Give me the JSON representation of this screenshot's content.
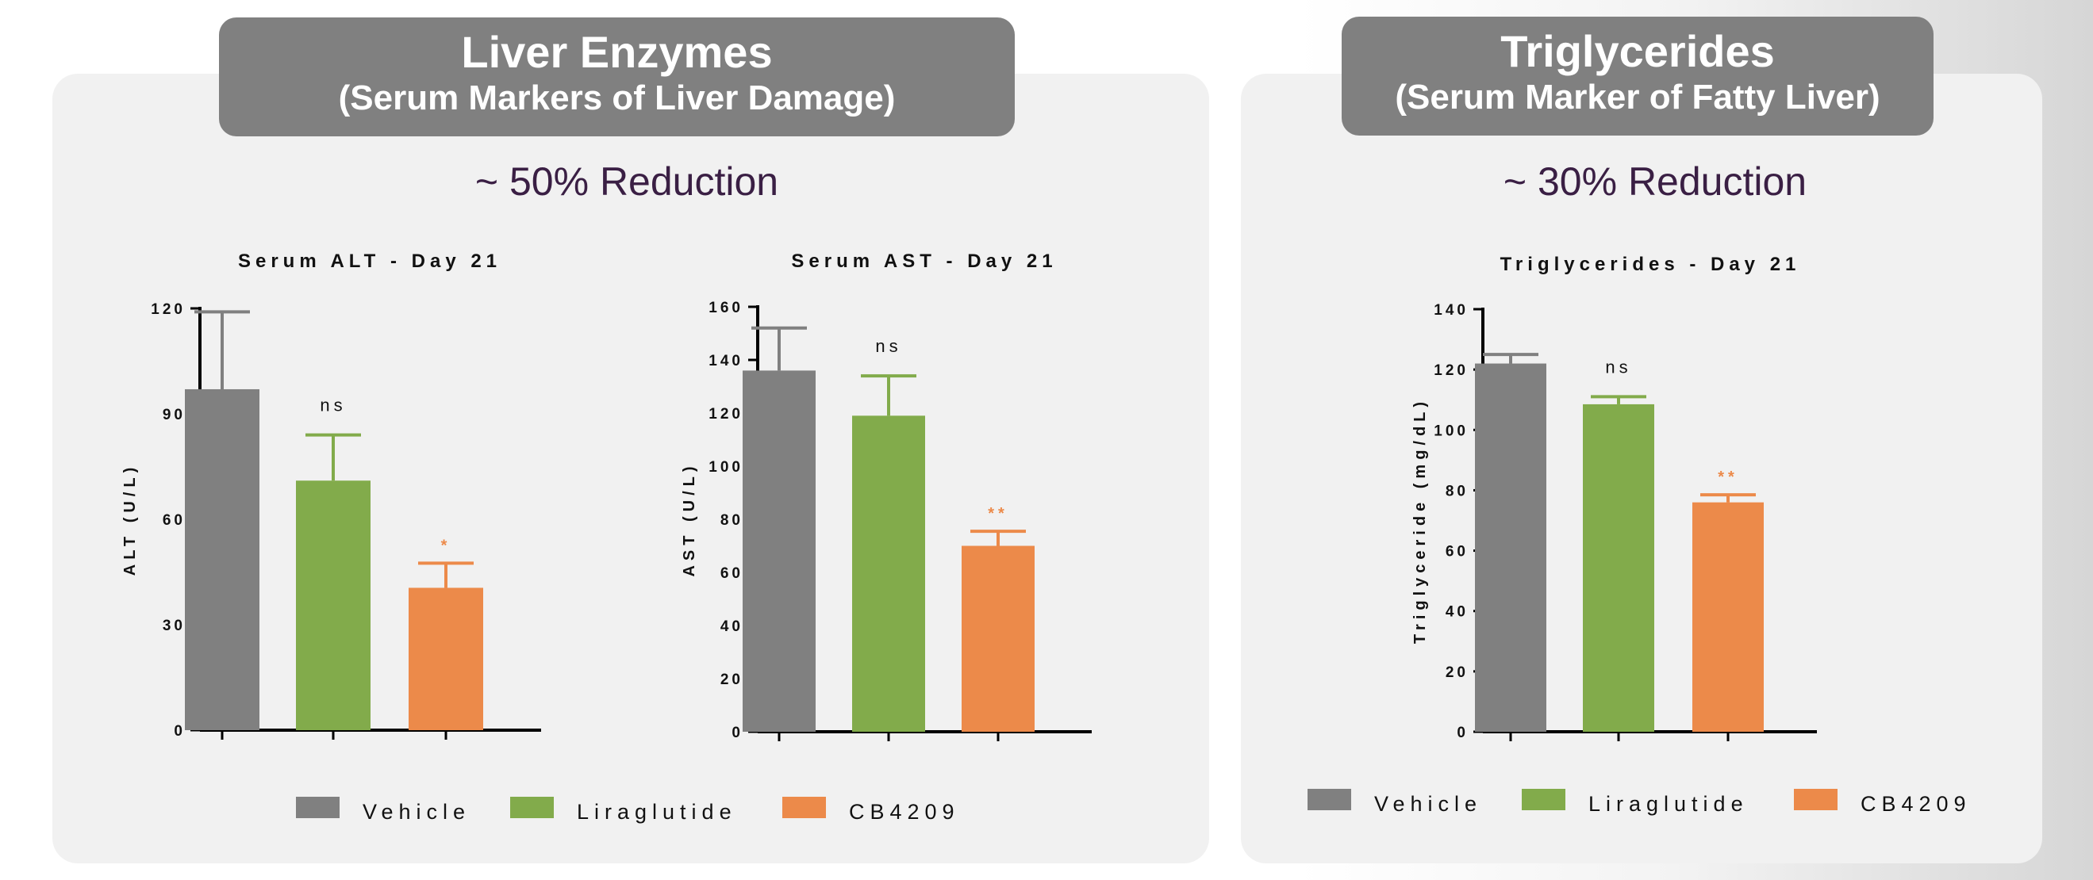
{
  "colors": {
    "vehicle": "#808080",
    "liraglutide": "#82ab4b",
    "cb4209": "#ec8a4a"
  },
  "panels": {
    "liver": {
      "title_line1": "Liver Enzymes",
      "title_line2": "(Serum Markers of Liver Damage)",
      "reduction": "~ 50% Reduction",
      "legend": [
        "Vehicle",
        "Liraglutide",
        "CB4209"
      ]
    },
    "tg": {
      "title_line1": "Triglycerides",
      "title_line2": "(Serum Marker of Fatty Liver)",
      "reduction": "~ 30% Reduction",
      "legend": [
        "Vehicle",
        "Liraglutide",
        "CB4209"
      ]
    }
  },
  "chart_data": [
    {
      "type": "bar",
      "title": "Serum ALT - Day 21",
      "ylabel": "ALT (U/L)",
      "ylim": [
        0,
        120
      ],
      "yticks": [
        0,
        30,
        60,
        90,
        120
      ],
      "categories": [
        "Vehicle",
        "Liraglutide",
        "CB4209"
      ],
      "values": [
        97,
        71,
        40.5
      ],
      "error_upper": [
        119,
        84,
        47.5
      ],
      "annotations": [
        "",
        "ns",
        "*"
      ],
      "colors": [
        "#808080",
        "#82ab4b",
        "#ec8a4a"
      ]
    },
    {
      "type": "bar",
      "title": "Serum AST - Day 21",
      "ylabel": "AST (U/L)",
      "ylim": [
        0,
        160
      ],
      "yticks": [
        0,
        20,
        40,
        60,
        80,
        100,
        120,
        140,
        160
      ],
      "categories": [
        "Vehicle",
        "Liraglutide",
        "CB4209"
      ],
      "values": [
        136,
        119,
        70
      ],
      "error_upper": [
        152,
        134,
        75.5
      ],
      "annotations": [
        "",
        "ns",
        "**"
      ],
      "colors": [
        "#808080",
        "#82ab4b",
        "#ec8a4a"
      ]
    },
    {
      "type": "bar",
      "title": "Triglycerides - Day 21",
      "ylabel": "Triglyceride (mg/dL)",
      "ylim": [
        0,
        140
      ],
      "yticks": [
        0,
        20,
        40,
        60,
        80,
        100,
        120,
        140
      ],
      "categories": [
        "Vehicle",
        "Liraglutide",
        "CB4209"
      ],
      "values": [
        122,
        108.5,
        76
      ],
      "error_upper": [
        125,
        111,
        78.5
      ],
      "annotations": [
        "",
        "ns",
        "**"
      ],
      "colors": [
        "#808080",
        "#82ab4b",
        "#ec8a4a"
      ]
    }
  ]
}
